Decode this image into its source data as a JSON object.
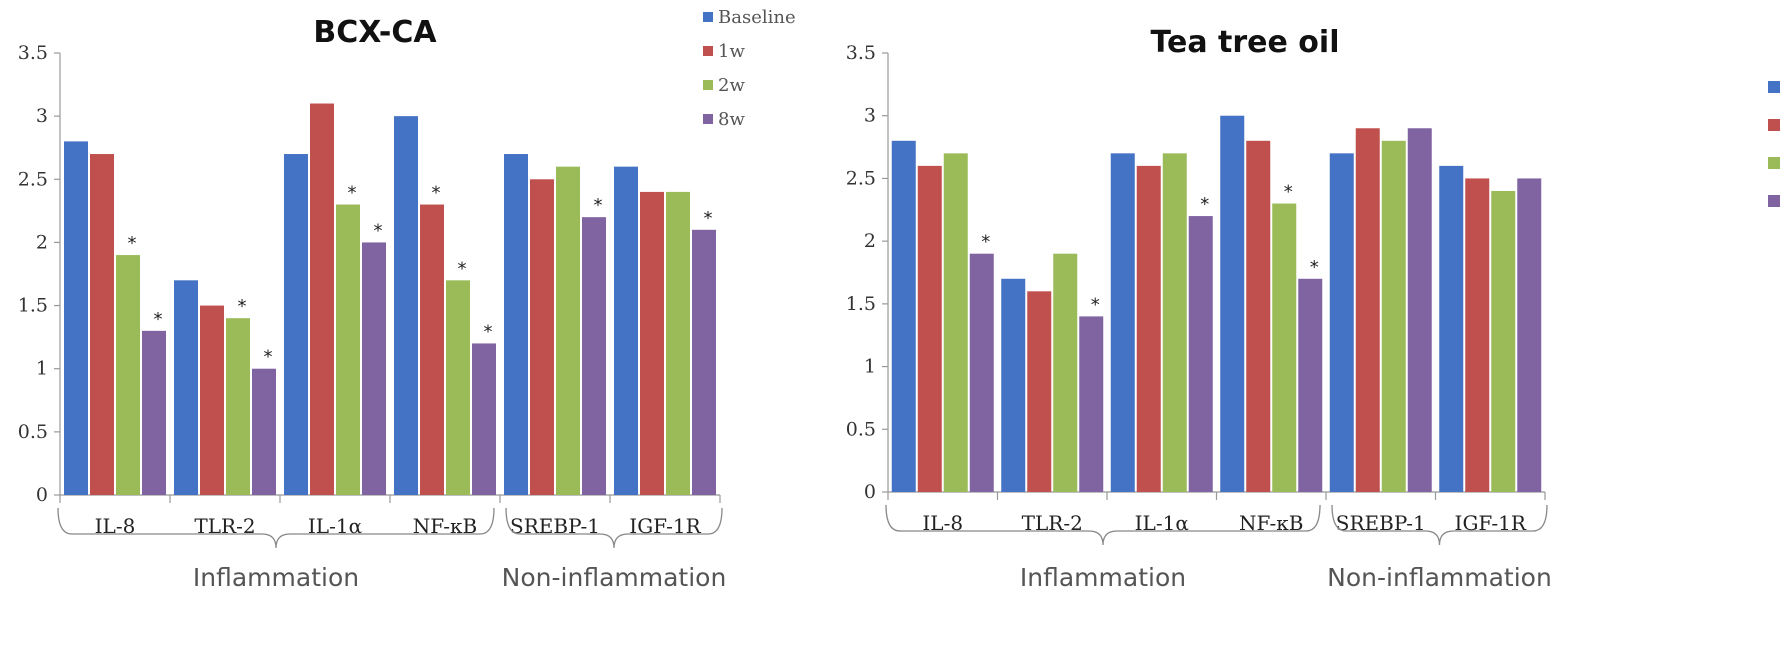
{
  "colors": {
    "Baseline": "#4472c4",
    "1w": "#c0504d",
    "2w": "#9bbb59",
    "8w": "#8064a2"
  },
  "chart_data": [
    {
      "type": "bar",
      "title": "BCX-CA",
      "categories": [
        "IL-8",
        "TLR-2",
        "IL-1α",
        "NF-κB",
        "SREBP-1",
        "IGF-1R"
      ],
      "groups": [
        {
          "label": "Inflammation",
          "categories": [
            "IL-8",
            "TLR-2",
            "IL-1α",
            "NF-κB"
          ]
        },
        {
          "label": "Non-inflammation",
          "categories": [
            "SREBP-1",
            "IGF-1R"
          ]
        }
      ],
      "series": [
        {
          "name": "Baseline",
          "values": [
            2.8,
            1.7,
            2.7,
            3.0,
            2.7,
            2.6
          ]
        },
        {
          "name": "1w",
          "values": [
            2.7,
            1.5,
            3.1,
            2.3,
            2.5,
            2.4
          ]
        },
        {
          "name": "2w",
          "values": [
            1.9,
            1.4,
            2.3,
            1.7,
            2.6,
            2.4
          ]
        },
        {
          "name": "8w",
          "values": [
            1.3,
            1.0,
            2.0,
            1.2,
            2.2,
            2.1
          ]
        }
      ],
      "significance": [
        {
          "series": "1w",
          "category": "NF-κB"
        },
        {
          "series": "2w",
          "category": "IL-8"
        },
        {
          "series": "2w",
          "category": "TLR-2"
        },
        {
          "series": "2w",
          "category": "IL-1α"
        },
        {
          "series": "2w",
          "category": "NF-κB"
        },
        {
          "series": "8w",
          "category": "IL-8"
        },
        {
          "series": "8w",
          "category": "TLR-2"
        },
        {
          "series": "8w",
          "category": "IL-1α"
        },
        {
          "series": "8w",
          "category": "NF-κB"
        },
        {
          "series": "8w",
          "category": "SREBP-1"
        },
        {
          "series": "8w",
          "category": "IGF-1R"
        }
      ],
      "yticks": [
        "0",
        "0.5",
        "1",
        "1.5",
        "2",
        "2.5",
        "3",
        "3.5"
      ],
      "ylim": [
        0,
        3.5
      ],
      "grid": false,
      "legend": {
        "placement": "top-right",
        "items": [
          "Baseline",
          "1w",
          "2w",
          "8w"
        ]
      }
    },
    {
      "type": "bar",
      "title": "Tea tree oil",
      "categories": [
        "IL-8",
        "TLR-2",
        "IL-1α",
        "NF-κB",
        "SREBP-1",
        "IGF-1R"
      ],
      "groups": [
        {
          "label": "Inflammation",
          "categories": [
            "IL-8",
            "TLR-2",
            "IL-1α",
            "NF-κB"
          ]
        },
        {
          "label": "Non-inflammation",
          "categories": [
            "SREBP-1",
            "IGF-1R"
          ]
        }
      ],
      "series": [
        {
          "name": "Baseline",
          "values": [
            2.8,
            1.7,
            2.7,
            3.0,
            2.7,
            2.6
          ]
        },
        {
          "name": "1w",
          "values": [
            2.6,
            1.6,
            2.6,
            2.8,
            2.9,
            2.5
          ]
        },
        {
          "name": "2w",
          "values": [
            2.7,
            1.9,
            2.7,
            2.3,
            2.8,
            2.4
          ]
        },
        {
          "name": "8w",
          "values": [
            1.9,
            1.4,
            2.2,
            1.7,
            2.9,
            2.5
          ]
        }
      ],
      "significance": [
        {
          "series": "2w",
          "category": "NF-κB"
        },
        {
          "series": "8w",
          "category": "IL-8"
        },
        {
          "series": "8w",
          "category": "TLR-2"
        },
        {
          "series": "8w",
          "category": "IL-1α"
        },
        {
          "series": "8w",
          "category": "NF-κB"
        }
      ],
      "yticks": [
        "0",
        "0.5",
        "1",
        "1.5",
        "2",
        "2.5",
        "3",
        "3.5"
      ],
      "ylim": [
        0,
        3.5
      ],
      "grid": false,
      "legend": {
        "placement": "top-right",
        "items": []
      }
    }
  ]
}
